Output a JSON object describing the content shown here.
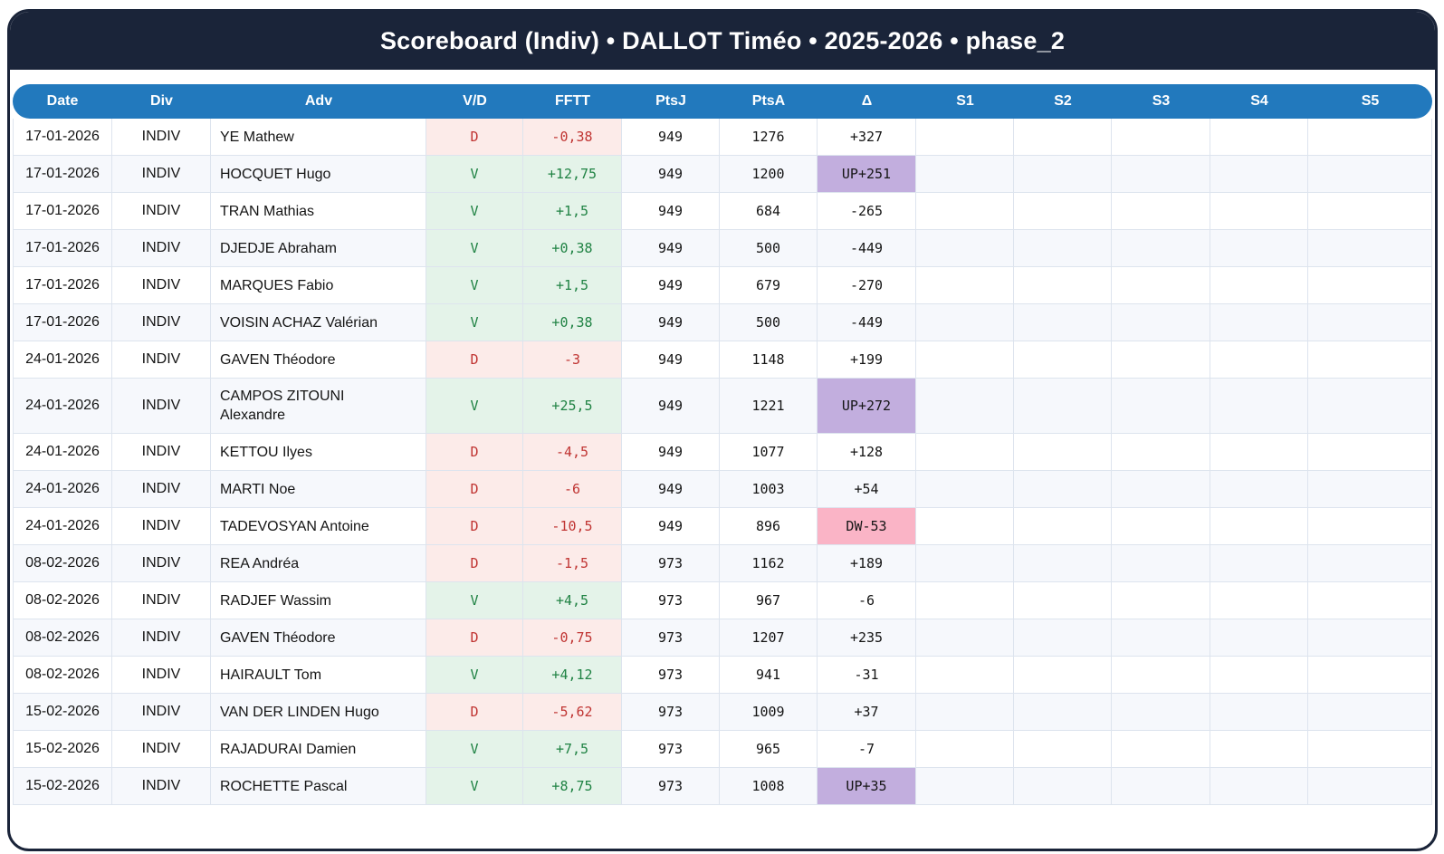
{
  "title": "Scoreboard (Indiv) • DALLOT Timéo • 2025-2026 • phase_2",
  "colors": {
    "navy": "#1a2439",
    "blue": "#2279bd",
    "stripe": "#f6f8fc",
    "grid": "#dde4ee",
    "win-bg": "#e4f3e9",
    "win-text": "#1f8243",
    "loss-bg": "#fcebe9",
    "loss-text": "#c03432",
    "up-bg": "#c2aede",
    "down-bg": "#fab4c6",
    "text": "#141414"
  },
  "table": {
    "columns": [
      "Date",
      "Div",
      "Adv",
      "V/D",
      "FFTT",
      "PtsJ",
      "PtsA",
      "Δ",
      "S1",
      "S2",
      "S3",
      "S4",
      "S5"
    ],
    "rows": [
      {
        "date": "17-01-2026",
        "div": "INDIV",
        "adv": "YE Mathew",
        "vd": "D",
        "fftt": "-0,38",
        "ptsj": "949",
        "ptsa": "1276",
        "delta": "+327",
        "delta_type": "none",
        "s1": "",
        "s2": "",
        "s3": "",
        "s4": "",
        "s5": ""
      },
      {
        "date": "17-01-2026",
        "div": "INDIV",
        "adv": "HOCQUET Hugo",
        "vd": "V",
        "fftt": "+12,75",
        "ptsj": "949",
        "ptsa": "1200",
        "delta": "UP+251",
        "delta_type": "up",
        "s1": "",
        "s2": "",
        "s3": "",
        "s4": "",
        "s5": ""
      },
      {
        "date": "17-01-2026",
        "div": "INDIV",
        "adv": "TRAN Mathias",
        "vd": "V",
        "fftt": "+1,5",
        "ptsj": "949",
        "ptsa": "684",
        "delta": "-265",
        "delta_type": "none",
        "s1": "",
        "s2": "",
        "s3": "",
        "s4": "",
        "s5": ""
      },
      {
        "date": "17-01-2026",
        "div": "INDIV",
        "adv": "DJEDJE Abraham",
        "vd": "V",
        "fftt": "+0,38",
        "ptsj": "949",
        "ptsa": "500",
        "delta": "-449",
        "delta_type": "none",
        "s1": "",
        "s2": "",
        "s3": "",
        "s4": "",
        "s5": ""
      },
      {
        "date": "17-01-2026",
        "div": "INDIV",
        "adv": "MARQUES Fabio",
        "vd": "V",
        "fftt": "+1,5",
        "ptsj": "949",
        "ptsa": "679",
        "delta": "-270",
        "delta_type": "none",
        "s1": "",
        "s2": "",
        "s3": "",
        "s4": "",
        "s5": ""
      },
      {
        "date": "17-01-2026",
        "div": "INDIV",
        "adv": "VOISIN ACHAZ Valérian",
        "vd": "V",
        "fftt": "+0,38",
        "ptsj": "949",
        "ptsa": "500",
        "delta": "-449",
        "delta_type": "none",
        "s1": "",
        "s2": "",
        "s3": "",
        "s4": "",
        "s5": ""
      },
      {
        "date": "24-01-2026",
        "div": "INDIV",
        "adv": "GAVEN Théodore",
        "vd": "D",
        "fftt": "-3",
        "ptsj": "949",
        "ptsa": "1148",
        "delta": "+199",
        "delta_type": "none",
        "s1": "",
        "s2": "",
        "s3": "",
        "s4": "",
        "s5": ""
      },
      {
        "date": "24-01-2026",
        "div": "INDIV",
        "adv": "CAMPOS ZITOUNI Alexandre",
        "vd": "V",
        "fftt": "+25,5",
        "ptsj": "949",
        "ptsa": "1221",
        "delta": "UP+272",
        "delta_type": "up",
        "s1": "",
        "s2": "",
        "s3": "",
        "s4": "",
        "s5": ""
      },
      {
        "date": "24-01-2026",
        "div": "INDIV",
        "adv": "KETTOU Ilyes",
        "vd": "D",
        "fftt": "-4,5",
        "ptsj": "949",
        "ptsa": "1077",
        "delta": "+128",
        "delta_type": "none",
        "s1": "",
        "s2": "",
        "s3": "",
        "s4": "",
        "s5": ""
      },
      {
        "date": "24-01-2026",
        "div": "INDIV",
        "adv": "MARTI Noe",
        "vd": "D",
        "fftt": "-6",
        "ptsj": "949",
        "ptsa": "1003",
        "delta": "+54",
        "delta_type": "none",
        "s1": "",
        "s2": "",
        "s3": "",
        "s4": "",
        "s5": ""
      },
      {
        "date": "24-01-2026",
        "div": "INDIV",
        "adv": "TADEVOSYAN Antoine",
        "vd": "D",
        "fftt": "-10,5",
        "ptsj": "949",
        "ptsa": "896",
        "delta": "DW-53",
        "delta_type": "down",
        "s1": "",
        "s2": "",
        "s3": "",
        "s4": "",
        "s5": ""
      },
      {
        "date": "08-02-2026",
        "div": "INDIV",
        "adv": "REA Andréa",
        "vd": "D",
        "fftt": "-1,5",
        "ptsj": "973",
        "ptsa": "1162",
        "delta": "+189",
        "delta_type": "none",
        "s1": "",
        "s2": "",
        "s3": "",
        "s4": "",
        "s5": ""
      },
      {
        "date": "08-02-2026",
        "div": "INDIV",
        "adv": "RADJEF Wassim",
        "vd": "V",
        "fftt": "+4,5",
        "ptsj": "973",
        "ptsa": "967",
        "delta": "-6",
        "delta_type": "none",
        "s1": "",
        "s2": "",
        "s3": "",
        "s4": "",
        "s5": ""
      },
      {
        "date": "08-02-2026",
        "div": "INDIV",
        "adv": "GAVEN Théodore",
        "vd": "D",
        "fftt": "-0,75",
        "ptsj": "973",
        "ptsa": "1207",
        "delta": "+235",
        "delta_type": "none",
        "s1": "",
        "s2": "",
        "s3": "",
        "s4": "",
        "s5": ""
      },
      {
        "date": "08-02-2026",
        "div": "INDIV",
        "adv": "HAIRAULT Tom",
        "vd": "V",
        "fftt": "+4,12",
        "ptsj": "973",
        "ptsa": "941",
        "delta": "-31",
        "delta_type": "none",
        "s1": "",
        "s2": "",
        "s3": "",
        "s4": "",
        "s5": ""
      },
      {
        "date": "15-02-2026",
        "div": "INDIV",
        "adv": "VAN DER LINDEN Hugo",
        "vd": "D",
        "fftt": "-5,62",
        "ptsj": "973",
        "ptsa": "1009",
        "delta": "+37",
        "delta_type": "none",
        "s1": "",
        "s2": "",
        "s3": "",
        "s4": "",
        "s5": ""
      },
      {
        "date": "15-02-2026",
        "div": "INDIV",
        "adv": "RAJADURAI Damien",
        "vd": "V",
        "fftt": "+7,5",
        "ptsj": "973",
        "ptsa": "965",
        "delta": "-7",
        "delta_type": "none",
        "s1": "",
        "s2": "",
        "s3": "",
        "s4": "",
        "s5": ""
      },
      {
        "date": "15-02-2026",
        "div": "INDIV",
        "adv": "ROCHETTE Pascal",
        "vd": "V",
        "fftt": "+8,75",
        "ptsj": "973",
        "ptsa": "1008",
        "delta": "UP+35",
        "delta_type": "up",
        "s1": "",
        "s2": "",
        "s3": "",
        "s4": "",
        "s5": ""
      }
    ]
  }
}
